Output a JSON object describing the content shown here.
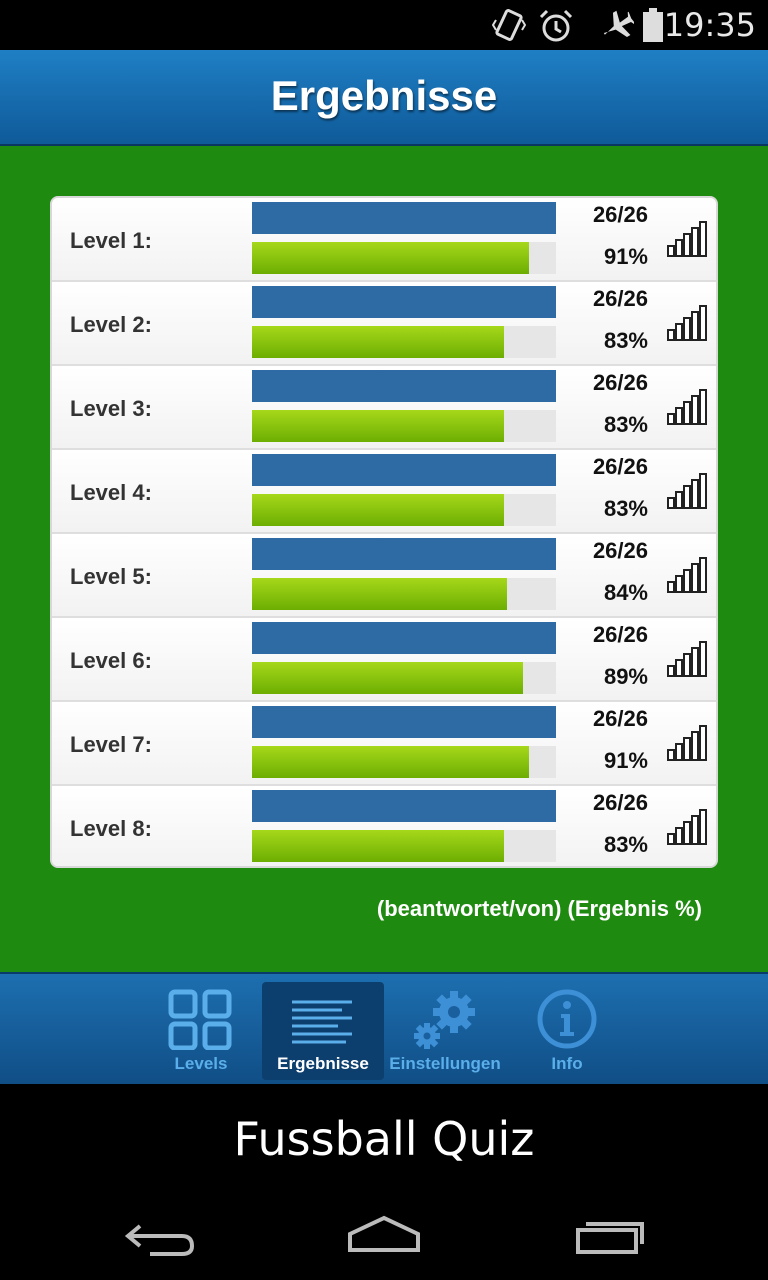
{
  "status_bar": {
    "time": "19:35",
    "icons": [
      "vibrate-icon",
      "alarm-icon",
      "airplane-mode-icon",
      "battery-icon"
    ]
  },
  "header": {
    "title": "Ergebnisse"
  },
  "results": [
    {
      "label": "Level 1:",
      "count": "26/26",
      "percent_text": "91%",
      "answered_fraction": 1.0,
      "score_fraction": 0.91
    },
    {
      "label": "Level 2:",
      "count": "26/26",
      "percent_text": "83%",
      "answered_fraction": 1.0,
      "score_fraction": 0.83
    },
    {
      "label": "Level 3:",
      "count": "26/26",
      "percent_text": "83%",
      "answered_fraction": 1.0,
      "score_fraction": 0.83
    },
    {
      "label": "Level 4:",
      "count": "26/26",
      "percent_text": "83%",
      "answered_fraction": 1.0,
      "score_fraction": 0.83
    },
    {
      "label": "Level 5:",
      "count": "26/26",
      "percent_text": "84%",
      "answered_fraction": 1.0,
      "score_fraction": 0.84
    },
    {
      "label": "Level 6:",
      "count": "26/26",
      "percent_text": "89%",
      "answered_fraction": 1.0,
      "score_fraction": 0.89
    },
    {
      "label": "Level 7:",
      "count": "26/26",
      "percent_text": "91%",
      "answered_fraction": 1.0,
      "score_fraction": 0.91
    },
    {
      "label": "Level 8:",
      "count": "26/26",
      "percent_text": "83%",
      "answered_fraction": 1.0,
      "score_fraction": 0.83
    }
  ],
  "legend": "(beantwortet/von) (Ergebnis %)",
  "tabs": [
    {
      "label": "Levels",
      "icon": "grid-icon",
      "active": false
    },
    {
      "label": "Ergebnisse",
      "icon": "list-icon",
      "active": true
    },
    {
      "label": "Einstellungen",
      "icon": "gears-icon",
      "active": false
    },
    {
      "label": "Info",
      "icon": "info-icon",
      "active": false
    }
  ],
  "banner": {
    "text": "Fussball Quiz"
  },
  "system_nav": [
    "back-icon",
    "home-icon",
    "recent-apps-icon"
  ],
  "colors": {
    "header": "#1f7fc4",
    "content_bg": "#1f8a10",
    "answered_bar": "#2e6aa3",
    "score_bar": "#8cc40f",
    "tab_active_label": "#ffffff",
    "tab_label": "#5aaeea"
  }
}
